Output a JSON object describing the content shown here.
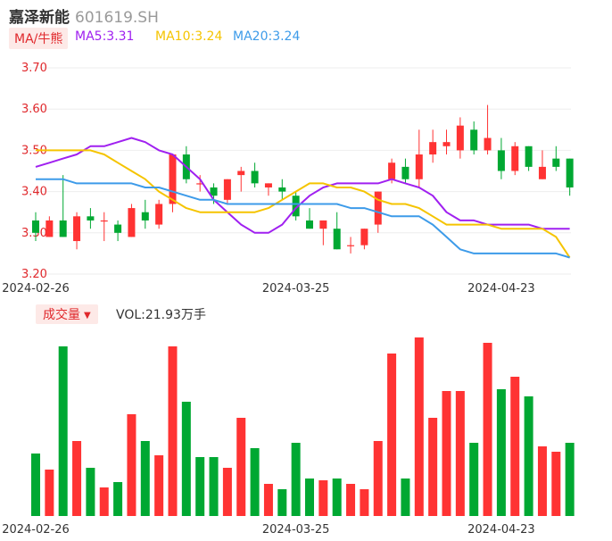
{
  "header": {
    "name": "嘉泽新能",
    "code": "601619.SH"
  },
  "ma_panel": {
    "tag": "MA/牛熊",
    "items": [
      {
        "label": "MA5:3.31",
        "color": "#a020f0"
      },
      {
        "label": "MA10:3.24",
        "color": "#f5c400"
      },
      {
        "label": "MA20:3.24",
        "color": "#3d9be9"
      }
    ]
  },
  "volume_panel": {
    "tag": "成交量",
    "caret_icon": "caret-down-icon",
    "label": "VOL:21.93万手"
  },
  "colors": {
    "up": "#ff3333",
    "down": "#00a832",
    "grid": "#eeeeee",
    "axis_tick": "#e0282c"
  },
  "chart_data": [
    {
      "type": "candlestick",
      "y_ticks": [
        "3.70",
        "3.60",
        "3.50",
        "3.40",
        "3.30",
        "3.20"
      ],
      "ylim": [
        3.2,
        3.7
      ],
      "x_tick_labels": [
        {
          "index": 0,
          "label": "2024-02-26"
        },
        {
          "index": 19,
          "label": "2024-03-25"
        },
        {
          "index": 34,
          "label": "2024-04-23"
        }
      ],
      "grid": true,
      "candles": [
        {
          "o": 3.33,
          "c": 3.3,
          "h": 3.35,
          "l": 3.28
        },
        {
          "o": 3.29,
          "c": 3.33,
          "h": 3.34,
          "l": 3.29
        },
        {
          "o": 3.33,
          "c": 3.29,
          "h": 3.44,
          "l": 3.29
        },
        {
          "o": 3.28,
          "c": 3.34,
          "h": 3.35,
          "l": 3.26
        },
        {
          "o": 3.34,
          "c": 3.33,
          "h": 3.36,
          "l": 3.31
        },
        {
          "o": 3.33,
          "c": 3.33,
          "h": 3.35,
          "l": 3.28
        },
        {
          "o": 3.32,
          "c": 3.3,
          "h": 3.33,
          "l": 3.28
        },
        {
          "o": 3.29,
          "c": 3.36,
          "h": 3.37,
          "l": 3.29
        },
        {
          "o": 3.35,
          "c": 3.33,
          "h": 3.38,
          "l": 3.31
        },
        {
          "o": 3.32,
          "c": 3.37,
          "h": 3.38,
          "l": 3.31
        },
        {
          "o": 3.37,
          "c": 3.49,
          "h": 3.49,
          "l": 3.35
        },
        {
          "o": 3.49,
          "c": 3.43,
          "h": 3.51,
          "l": 3.42
        },
        {
          "o": 3.42,
          "c": 3.42,
          "h": 3.44,
          "l": 3.4
        },
        {
          "o": 3.41,
          "c": 3.39,
          "h": 3.42,
          "l": 3.37
        },
        {
          "o": 3.38,
          "c": 3.43,
          "h": 3.43,
          "l": 3.37
        },
        {
          "o": 3.44,
          "c": 3.45,
          "h": 3.46,
          "l": 3.4
        },
        {
          "o": 3.45,
          "c": 3.42,
          "h": 3.47,
          "l": 3.41
        },
        {
          "o": 3.41,
          "c": 3.42,
          "h": 3.42,
          "l": 3.39
        },
        {
          "o": 3.41,
          "c": 3.4,
          "h": 3.43,
          "l": 3.38
        },
        {
          "o": 3.39,
          "c": 3.34,
          "h": 3.4,
          "l": 3.33
        },
        {
          "o": 3.33,
          "c": 3.31,
          "h": 3.36,
          "l": 3.31
        },
        {
          "o": 3.31,
          "c": 3.33,
          "h": 3.33,
          "l": 3.27
        },
        {
          "o": 3.31,
          "c": 3.26,
          "h": 3.35,
          "l": 3.26
        },
        {
          "o": 3.27,
          "c": 3.27,
          "h": 3.29,
          "l": 3.25
        },
        {
          "o": 3.27,
          "c": 3.31,
          "h": 3.31,
          "l": 3.26
        },
        {
          "o": 3.32,
          "c": 3.4,
          "h": 3.4,
          "l": 3.3
        },
        {
          "o": 3.43,
          "c": 3.47,
          "h": 3.48,
          "l": 3.42
        },
        {
          "o": 3.46,
          "c": 3.43,
          "h": 3.48,
          "l": 3.42
        },
        {
          "o": 3.43,
          "c": 3.49,
          "h": 3.55,
          "l": 3.41
        },
        {
          "o": 3.49,
          "c": 3.52,
          "h": 3.55,
          "l": 3.47
        },
        {
          "o": 3.51,
          "c": 3.52,
          "h": 3.55,
          "l": 3.49
        },
        {
          "o": 3.5,
          "c": 3.56,
          "h": 3.58,
          "l": 3.48
        },
        {
          "o": 3.55,
          "c": 3.5,
          "h": 3.57,
          "l": 3.49
        },
        {
          "o": 3.5,
          "c": 3.53,
          "h": 3.61,
          "l": 3.49
        },
        {
          "o": 3.5,
          "c": 3.45,
          "h": 3.53,
          "l": 3.43
        },
        {
          "o": 3.45,
          "c": 3.51,
          "h": 3.52,
          "l": 3.44
        },
        {
          "o": 3.51,
          "c": 3.46,
          "h": 3.51,
          "l": 3.45
        },
        {
          "o": 3.43,
          "c": 3.46,
          "h": 3.5,
          "l": 3.43
        },
        {
          "o": 3.48,
          "c": 3.46,
          "h": 3.51,
          "l": 3.45
        },
        {
          "o": 3.48,
          "c": 3.41,
          "h": 3.48,
          "l": 3.39
        }
      ],
      "ma_series": [
        {
          "label": "MA5",
          "values": [
            3.46,
            3.47,
            3.48,
            3.49,
            3.51,
            3.51,
            3.52,
            3.53,
            3.52,
            3.5,
            3.49,
            3.46,
            3.43,
            3.38,
            3.35,
            3.32,
            3.3,
            3.3,
            3.32,
            3.36,
            3.39,
            3.41,
            3.42,
            3.42,
            3.42,
            3.42,
            3.43,
            3.42,
            3.41,
            3.39,
            3.35,
            3.33,
            3.33,
            3.32,
            3.32,
            3.32,
            3.32,
            3.31,
            3.31,
            3.31
          ]
        },
        {
          "label": "MA10",
          "values": [
            3.5,
            3.5,
            3.5,
            3.5,
            3.5,
            3.49,
            3.47,
            3.45,
            3.43,
            3.4,
            3.38,
            3.36,
            3.35,
            3.35,
            3.35,
            3.35,
            3.35,
            3.36,
            3.38,
            3.4,
            3.42,
            3.42,
            3.41,
            3.41,
            3.4,
            3.38,
            3.37,
            3.37,
            3.36,
            3.34,
            3.32,
            3.32,
            3.32,
            3.32,
            3.31,
            3.31,
            3.31,
            3.31,
            3.29,
            3.24
          ]
        },
        {
          "label": "MA20",
          "values": [
            3.43,
            3.43,
            3.43,
            3.42,
            3.42,
            3.42,
            3.42,
            3.42,
            3.41,
            3.41,
            3.4,
            3.39,
            3.38,
            3.38,
            3.37,
            3.37,
            3.37,
            3.37,
            3.37,
            3.37,
            3.37,
            3.37,
            3.37,
            3.36,
            3.36,
            3.35,
            3.34,
            3.34,
            3.34,
            3.32,
            3.29,
            3.26,
            3.25,
            3.25,
            3.25,
            3.25,
            3.25,
            3.25,
            3.25,
            3.24
          ]
        }
      ]
    },
    {
      "type": "bar",
      "label": "成交量",
      "x_tick_labels": [
        {
          "index": 0,
          "label": "2024-02-26"
        },
        {
          "index": 19,
          "label": "2024-03-25"
        },
        {
          "index": 34,
          "label": "2024-04-23"
        }
      ],
      "ylim": [
        0,
        100
      ],
      "values": [
        35,
        26,
        95,
        42,
        27,
        16,
        19,
        57,
        42,
        34,
        95,
        64,
        33,
        33,
        27,
        55,
        38,
        18,
        15,
        41,
        21,
        20,
        21,
        18,
        15,
        42,
        91,
        21,
        100,
        55,
        70,
        70,
        41,
        97,
        71,
        78,
        67,
        39,
        36,
        41
      ],
      "up": [
        false,
        true,
        false,
        true,
        false,
        true,
        false,
        true,
        false,
        true,
        true,
        false,
        false,
        false,
        true,
        true,
        false,
        true,
        false,
        false,
        false,
        true,
        false,
        true,
        true,
        true,
        true,
        false,
        true,
        true,
        true,
        true,
        false,
        true,
        false,
        true,
        false,
        true,
        true,
        false
      ]
    }
  ]
}
